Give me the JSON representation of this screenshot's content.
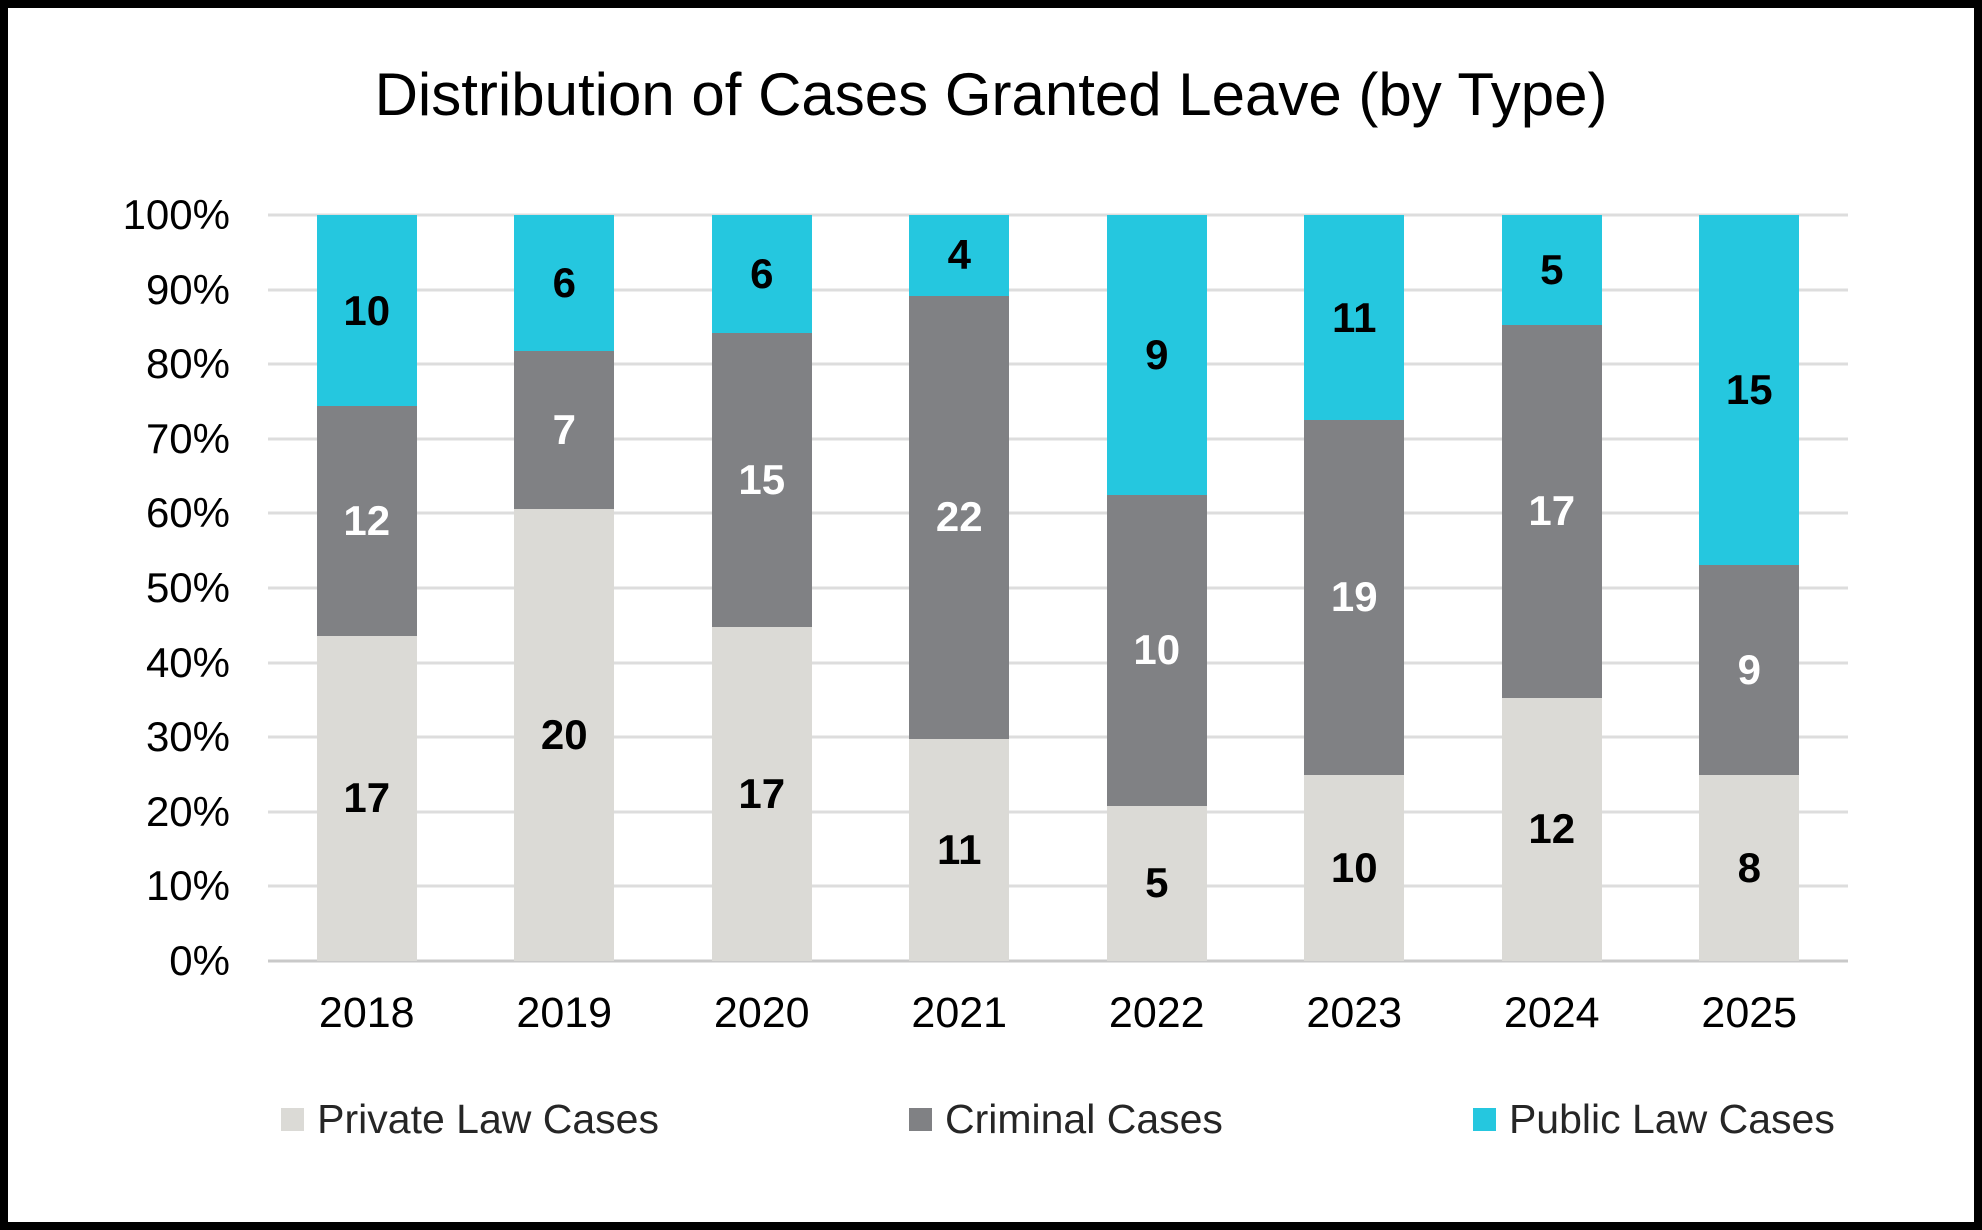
{
  "chart_data": {
    "type": "bar",
    "stacked": true,
    "stacking": "percent",
    "title": "Distribution of Cases Granted Leave (by Type)",
    "categories": [
      "2018",
      "2019",
      "2020",
      "2021",
      "2022",
      "2023",
      "2024",
      "2025"
    ],
    "series": [
      {
        "name": "Private Law Cases",
        "color": "#DBDAD6",
        "label_color": "#000000",
        "values": [
          17,
          20,
          17,
          11,
          5,
          10,
          12,
          8
        ]
      },
      {
        "name": "Criminal Cases",
        "color": "#808184",
        "label_color": "#FFFFFF",
        "values": [
          12,
          7,
          15,
          22,
          10,
          19,
          17,
          9
        ]
      },
      {
        "name": "Public Law Cases",
        "color": "#25C7DF",
        "label_color": "#000000",
        "values": [
          10,
          6,
          6,
          4,
          9,
          11,
          5,
          15
        ]
      }
    ],
    "xlabel": "",
    "ylabel": "",
    "y_ticks": [
      "0%",
      "10%",
      "20%",
      "30%",
      "40%",
      "50%",
      "60%",
      "70%",
      "80%",
      "90%",
      "100%"
    ],
    "ylim": [
      0,
      100
    ],
    "grid": true,
    "legend_position": "bottom",
    "data_labels_shown": true
  },
  "colors": {
    "grid": "#DDDDDD",
    "axis_line": "#C9C9C9",
    "title_text": "#000000",
    "legend_text": "#262626",
    "background": "#FFFFFF",
    "border": "#000000"
  }
}
